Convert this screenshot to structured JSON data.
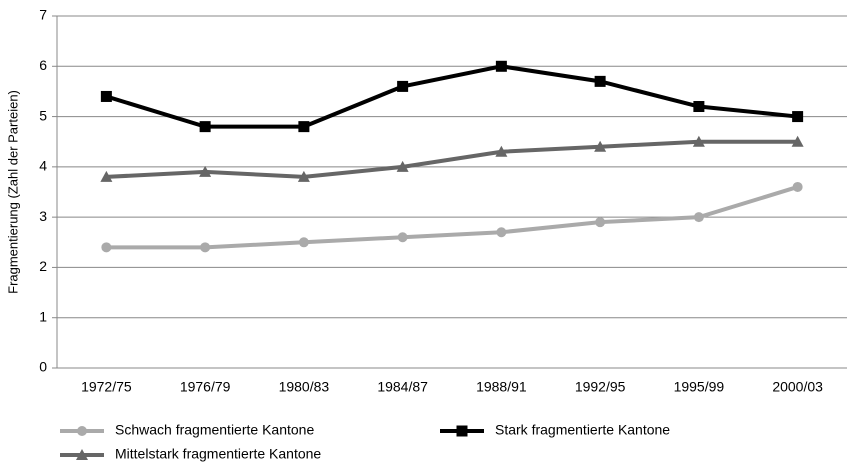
{
  "chart_data": {
    "type": "line",
    "y_label": "Fragmentierung (Zahl der Parteien)",
    "categories": [
      "1972/75",
      "1976/79",
      "1980/83",
      "1984/87",
      "1988/91",
      "1992/95",
      "1995/99",
      "2000/03"
    ],
    "series": [
      {
        "name": "Schwach fragmentierte Kantone",
        "color": "#aaaaaa",
        "marker": "circle",
        "values": [
          2.4,
          2.4,
          2.5,
          2.6,
          2.7,
          2.9,
          3.0,
          3.6
        ]
      },
      {
        "name": "Stark fragmentierte Kantone",
        "color": "#000000",
        "marker": "square",
        "values": [
          5.4,
          4.8,
          4.8,
          5.6,
          6.0,
          5.7,
          5.2,
          5.0
        ]
      },
      {
        "name": "Mittelstark fragmentierte Kantone",
        "color": "#666666",
        "marker": "triangle",
        "values": [
          3.8,
          3.9,
          3.8,
          4.0,
          4.3,
          4.4,
          4.5,
          4.5
        ]
      }
    ],
    "ylim": [
      0,
      7
    ],
    "yticks": [
      0,
      1,
      2,
      3,
      4,
      5,
      6,
      7
    ],
    "grid": true,
    "legend": "bottom"
  }
}
